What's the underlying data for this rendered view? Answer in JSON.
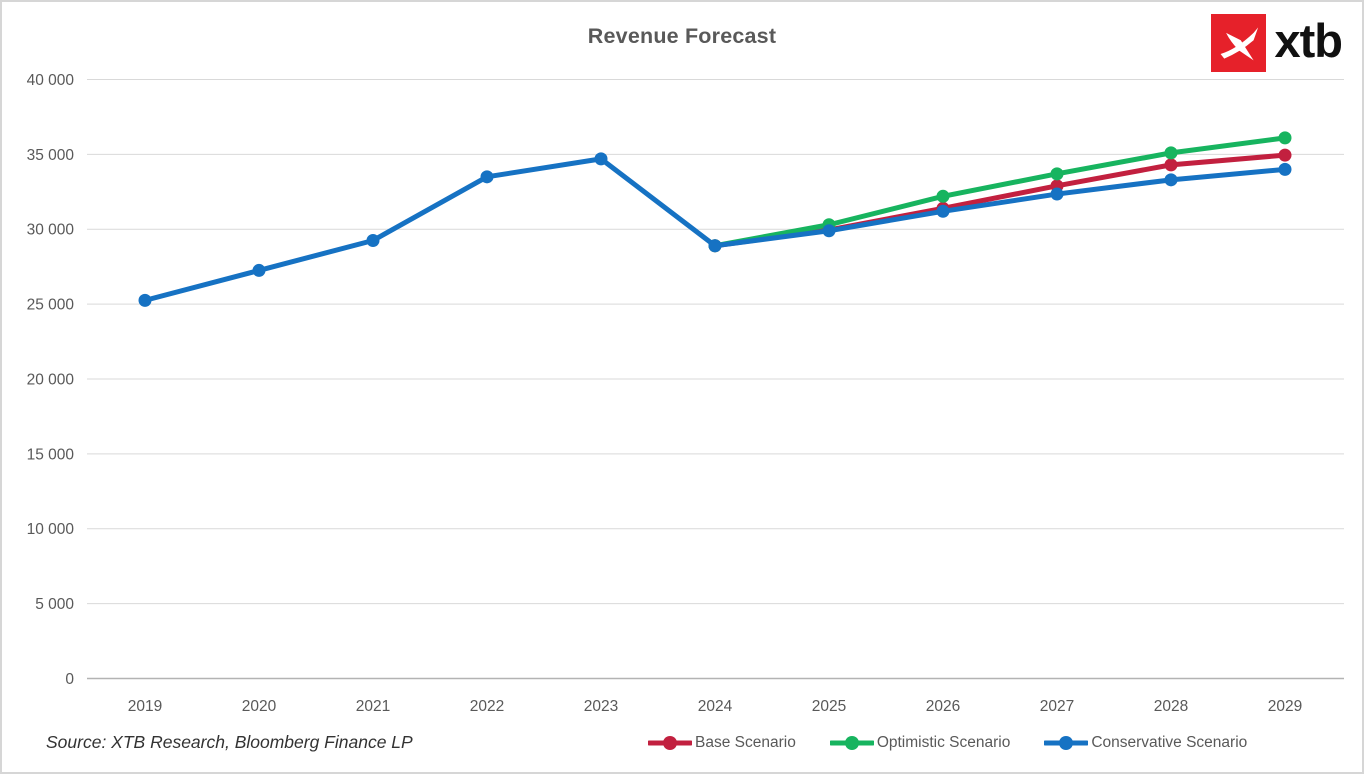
{
  "header": {
    "title": "Revenue Forecast",
    "logo_text": "xtb",
    "logo_red": "#e6212a"
  },
  "footer": {
    "source": "Source: XTB Research, Bloomberg Finance LP"
  },
  "colors": {
    "grid": "#d9d9d9",
    "zero_axis": "#b3b3b3",
    "tick_label": "#595959",
    "title_text": "#595959"
  },
  "chart_data": {
    "type": "line",
    "title": "Revenue Forecast",
    "x": [
      2019,
      2020,
      2021,
      2022,
      2023,
      2024,
      2025,
      2026,
      2027,
      2028,
      2029
    ],
    "series": [
      {
        "name": "Base Scenario",
        "color": "#c2203f",
        "values": [
          null,
          null,
          null,
          null,
          null,
          28900,
          29950,
          31400,
          32900,
          34300,
          34950
        ]
      },
      {
        "name": "Optimistic Scenario",
        "color": "#17b45f",
        "values": [
          null,
          null,
          null,
          null,
          null,
          28900,
          30300,
          32200,
          33700,
          35100,
          36100
        ]
      },
      {
        "name": "Conservative Scenario",
        "color": "#1672c3",
        "values": [
          25250,
          27250,
          29250,
          33500,
          34700,
          28900,
          29900,
          31200,
          32350,
          33300,
          34000
        ]
      }
    ],
    "ylim": [
      0,
      40000
    ],
    "ytick_step": 5000,
    "ytick_labels": [
      "0",
      "5 000",
      "10 000",
      "15 000",
      "20 000",
      "25 000",
      "30 000",
      "35 000",
      "40 000"
    ],
    "grid": "horizontal",
    "legend_position": "bottom",
    "marker": "circle"
  }
}
